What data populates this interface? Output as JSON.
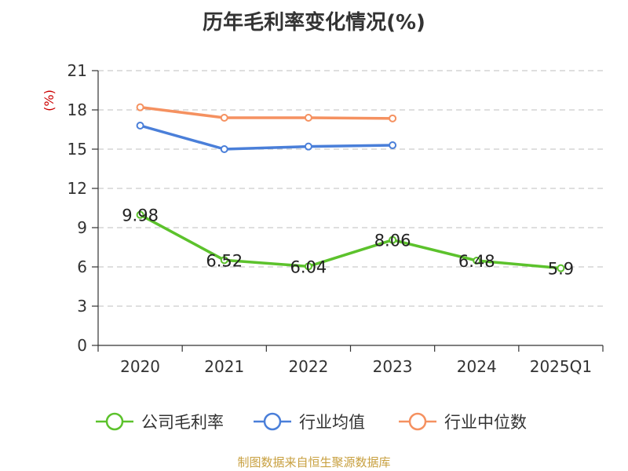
{
  "chart_data": {
    "type": "line",
    "title": "历年毛利率变化情况(%)",
    "ylabel": "(%)",
    "categories": [
      "2020",
      "2021",
      "2022",
      "2023",
      "2024",
      "2025Q1"
    ],
    "ylim": [
      0,
      21
    ],
    "yticks": [
      0,
      3,
      6,
      9,
      12,
      15,
      18,
      21
    ],
    "grid": true,
    "legend_position": "bottom",
    "series": [
      {
        "name": "公司毛利率",
        "color": "#5cc22c",
        "values": [
          9.98,
          6.52,
          6.04,
          8.06,
          6.48,
          5.9
        ],
        "labels": [
          "9.98",
          "6.52",
          "6.04",
          "8.06",
          "6.48",
          "5.9"
        ]
      },
      {
        "name": "行业均值",
        "color": "#4a7fd9",
        "values": [
          16.8,
          15.0,
          15.2,
          15.3,
          null,
          null
        ]
      },
      {
        "name": "行业中位数",
        "color": "#f59160",
        "values": [
          18.2,
          17.4,
          17.4,
          17.35,
          null,
          null
        ]
      }
    ]
  },
  "source": "制图数据来自恒生聚源数据库"
}
